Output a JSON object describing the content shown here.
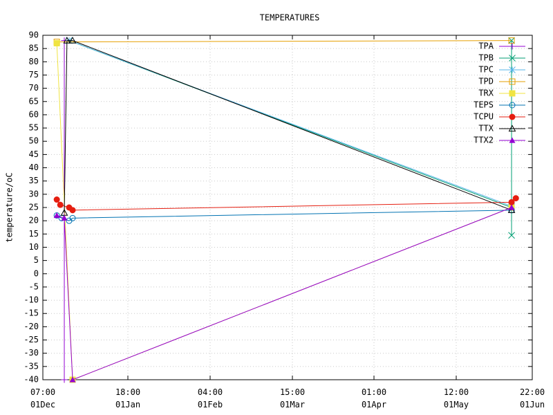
{
  "chart_data": {
    "type": "line",
    "title": "TEMPERATURES",
    "y_label": "temperature/oC",
    "xlim": [
      0,
      182.625
    ],
    "ylim": [
      -40,
      90
    ],
    "xticks": [
      {
        "value": 0,
        "label": "07:00\n01Dec"
      },
      {
        "value": 31.73,
        "label": "18:00\n01Jan"
      },
      {
        "value": 62.42,
        "label": "04:00\n01Feb"
      },
      {
        "value": 93.12,
        "label": "15:00\n01Mar"
      },
      {
        "value": 123.56,
        "label": "01:00\n01Apr"
      },
      {
        "value": 154.25,
        "label": "12:00\n01May"
      },
      {
        "value": 182.625,
        "label": "22:00\n01Jun"
      }
    ],
    "yticks": [
      -40,
      -35,
      -30,
      -25,
      -20,
      -15,
      -10,
      -5,
      0,
      5,
      10,
      15,
      20,
      25,
      30,
      35,
      40,
      45,
      50,
      55,
      60,
      65,
      70,
      75,
      80,
      85,
      90
    ],
    "grid": true,
    "legend": "top-right",
    "series": [
      {
        "name": "TPA",
        "color": "#9400d3",
        "marker": "plus",
        "x": [
          8.0,
          8.0
        ],
        "values": [
          88,
          -40
        ]
      },
      {
        "name": "TPB",
        "color": "#009e73",
        "marker": "cross",
        "x": [
          9.8,
          174.9,
          174.9,
          174.9
        ],
        "values": [
          88,
          25,
          14.5,
          88
        ]
      },
      {
        "name": "TPC",
        "color": "#56b4e9",
        "marker": "star",
        "x": [
          9.8,
          174.9
        ],
        "values": [
          88,
          25.5
        ]
      },
      {
        "name": "TPD",
        "color": "#e69f00",
        "marker": "square-open",
        "x": [
          5.2,
          174.9
        ],
        "values": [
          87.5,
          88
        ]
      },
      {
        "name": "TRX",
        "color": "#f0e442",
        "marker": "square",
        "x": [
          5.2,
          11.1,
          174.9
        ],
        "values": [
          87,
          -40,
          25
        ]
      },
      {
        "name": "TEPS",
        "color": "#0072b2",
        "marker": "circle-open",
        "x": [
          5.2,
          7.0,
          9.8,
          11.1,
          174.9
        ],
        "values": [
          22,
          21,
          20,
          21,
          24
        ]
      },
      {
        "name": "TCPU",
        "color": "#e51e10",
        "marker": "circle",
        "x": [
          5.2,
          6.5,
          9.8,
          11.1,
          174.9,
          176.5
        ],
        "values": [
          28,
          26,
          25,
          24,
          27,
          28.5
        ]
      },
      {
        "name": "TTX",
        "color": "#000000",
        "marker": "triangle-open",
        "x": [
          8.0,
          9.0,
          11.1,
          174.9
        ],
        "values": [
          23,
          88,
          88,
          24
        ]
      },
      {
        "name": "TTX2",
        "color": "#9400d3",
        "marker": "triangle",
        "x": [
          5.2,
          8.0,
          11.1,
          174.9
        ],
        "values": [
          22,
          21,
          -40,
          25
        ]
      }
    ]
  }
}
